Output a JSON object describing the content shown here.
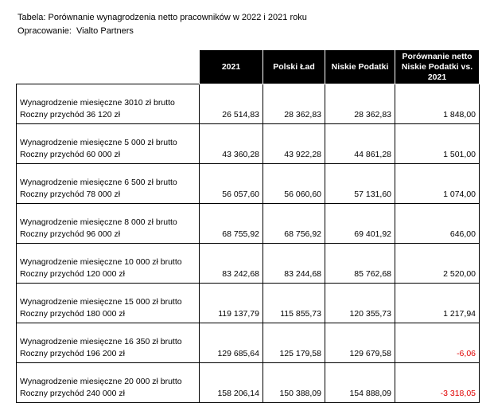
{
  "header": {
    "title": "Tabela: Porównanie wynagrodzenia netto pracowników w 2022 i 2021 roku",
    "source": "Opracowanie:  Vialto Partners"
  },
  "table": {
    "columns": [
      "2021",
      "Polski Ład",
      "Niskie Podatki",
      "Porównanie netto Niskie Podatki vs. 2021"
    ],
    "rows": [
      {
        "label": [
          "Wynagrodzenie miesięczne 3010 zł brutto",
          "Roczny przychód 36 120 zł"
        ],
        "values": [
          "26 514,83",
          "28 362,83",
          "28 362,83",
          "1 848,00"
        ]
      },
      {
        "label": [
          "Wynagrodzenie miesięczne 5 000 zł brutto",
          "Roczny przychód 60 000 zł"
        ],
        "values": [
          "43 360,28",
          "43 922,28",
          "44 861,28",
          "1 501,00"
        ]
      },
      {
        "label": [
          "Wynagrodzenie miesięczne 6 500 zł brutto",
          "Roczny przychód 78 000 zł"
        ],
        "values": [
          "56 057,60",
          "56 060,60",
          "57 131,60",
          "1 074,00"
        ]
      },
      {
        "label": [
          "Wynagrodzenie miesięczne 8 000 zł brutto",
          "Roczny przychód 96 000 zł"
        ],
        "values": [
          "68 755,92",
          "68 756,92",
          "69 401,92",
          "646,00"
        ]
      },
      {
        "label": [
          "Wynagrodzenie miesięczne 10 000 zł brutto",
          "Roczny przychód 120 000 zł"
        ],
        "values": [
          "83 242,68",
          "83 244,68",
          "85 762,68",
          "2 520,00"
        ]
      },
      {
        "label": [
          "Wynagrodzenie miesięczne 15 000 zł brutto",
          "Roczny przychód 180 000 zł"
        ],
        "values": [
          "119 137,79",
          "115 855,73",
          "120 355,73",
          "1 217,94"
        ]
      },
      {
        "label": [
          "Wynagrodzenie miesięczne 16 350 zł brutto",
          "Roczny przychód 196 200 zł"
        ],
        "values": [
          "129 685,64",
          "125 179,58",
          "129 679,58",
          "-6,06"
        ]
      },
      {
        "label": [
          "Wynagrodzenie miesięczne 20 000 zł brutto",
          "Roczny przychód 240 000 zł"
        ],
        "values": [
          "158 206,14",
          "150 388,09",
          "154 888,09",
          "-3 318,05"
        ]
      }
    ]
  }
}
